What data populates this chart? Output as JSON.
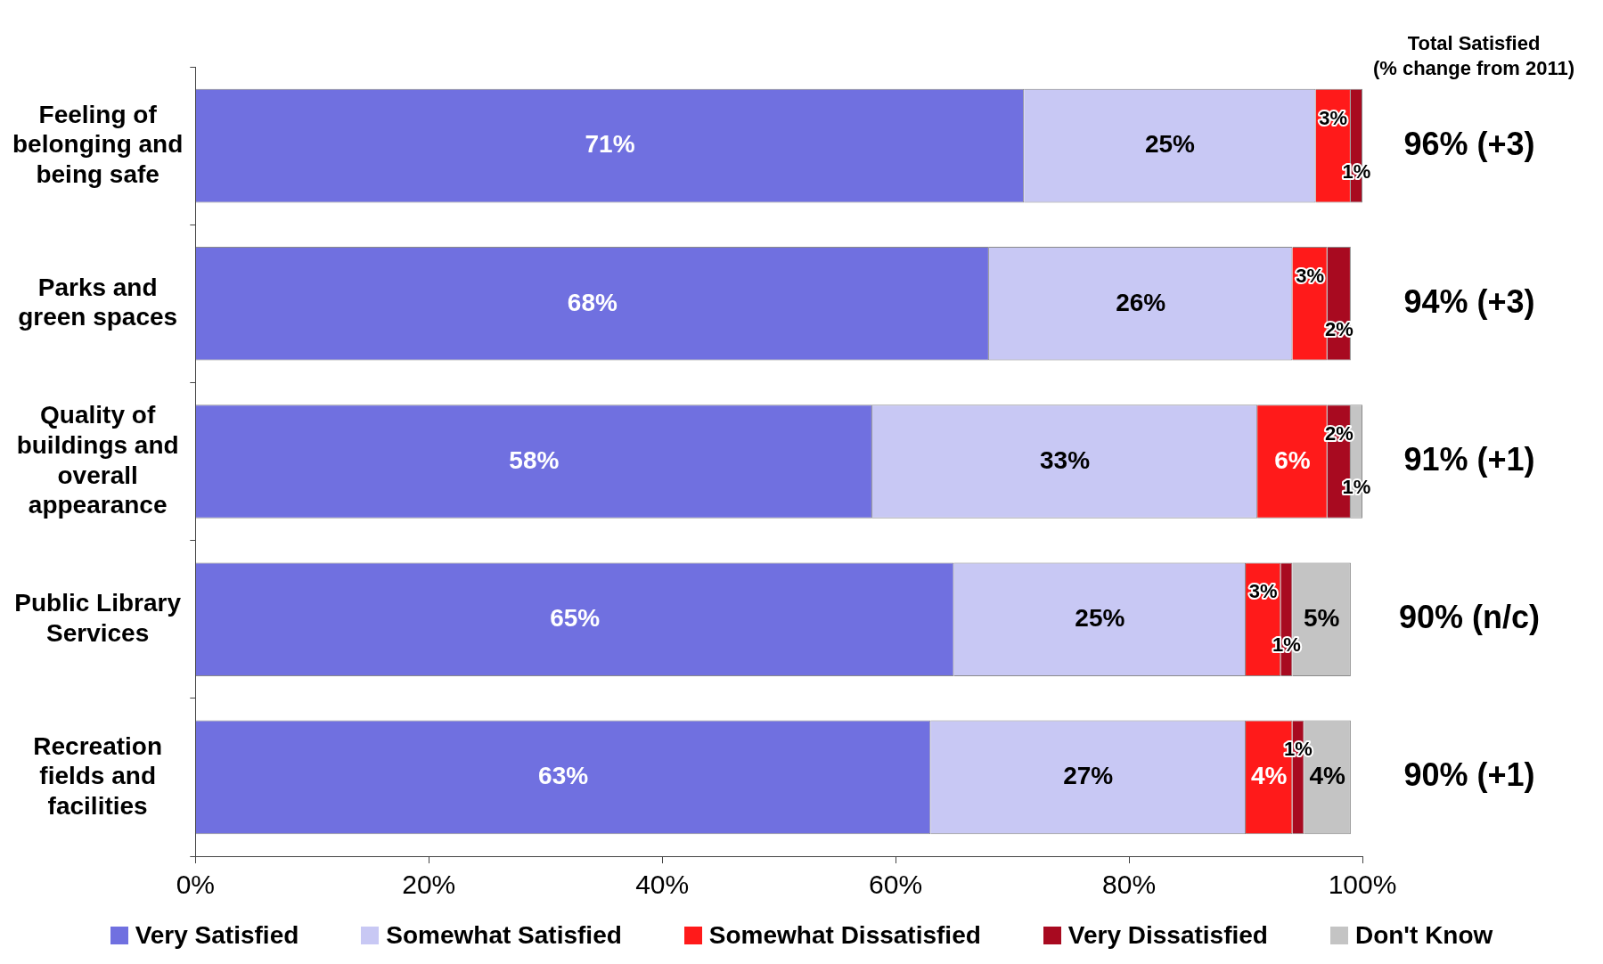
{
  "chart_data": {
    "type": "bar",
    "orientation": "horizontal",
    "stacked": true,
    "grid": false,
    "legend": "bottom",
    "categories": [
      "Feeling of belonging and being safe",
      "Parks and green spaces",
      "Quality of buildings and overall appearance",
      "Public Library Services",
      "Recreation fields and facilities"
    ],
    "series": [
      {
        "name": "Very Satisfied",
        "color": "#7070e0",
        "values": [
          71,
          68,
          58,
          65,
          63
        ],
        "value_labels": [
          "71%",
          "68%",
          "58%",
          "65%",
          "63%"
        ]
      },
      {
        "name": "Somewhat Satisfied",
        "color": "#c8c8f4",
        "values": [
          25,
          26,
          33,
          25,
          27
        ],
        "value_labels": [
          "25%",
          "26%",
          "33%",
          "25%",
          "27%"
        ]
      },
      {
        "name": "Somewhat Dissatisfied",
        "color": "#ff1a1a",
        "values": [
          3,
          3,
          6,
          3,
          4
        ],
        "value_labels": [
          "3%",
          "3%",
          "6%",
          "3%",
          "4%"
        ]
      },
      {
        "name": "Very Dissatisfied",
        "color": "#a80a20",
        "values": [
          1,
          2,
          2,
          1,
          1
        ],
        "value_labels": [
          "1%",
          "2%",
          "2%",
          "1%",
          "1%"
        ]
      },
      {
        "name": "Don't Know",
        "color": "#c4c4c4",
        "values": [
          null,
          null,
          1,
          5,
          4
        ],
        "value_labels": [
          null,
          null,
          "1%",
          "5%",
          "4%"
        ]
      }
    ],
    "xlim": [
      0,
      100
    ],
    "xticks": [
      {
        "value": 0,
        "label": "0%"
      },
      {
        "value": 20,
        "label": "20%"
      },
      {
        "value": 40,
        "label": "40%"
      },
      {
        "value": 60,
        "label": "60%"
      },
      {
        "value": 80,
        "label": "80%"
      },
      {
        "value": 100,
        "label": "100%"
      }
    ],
    "annotations": [
      "Total Satisfied\n(% change from 2011)",
      "96% (+3)",
      "94% (+3)",
      "91% (+1)",
      "90% (n/c)",
      "90% (+1)"
    ]
  }
}
